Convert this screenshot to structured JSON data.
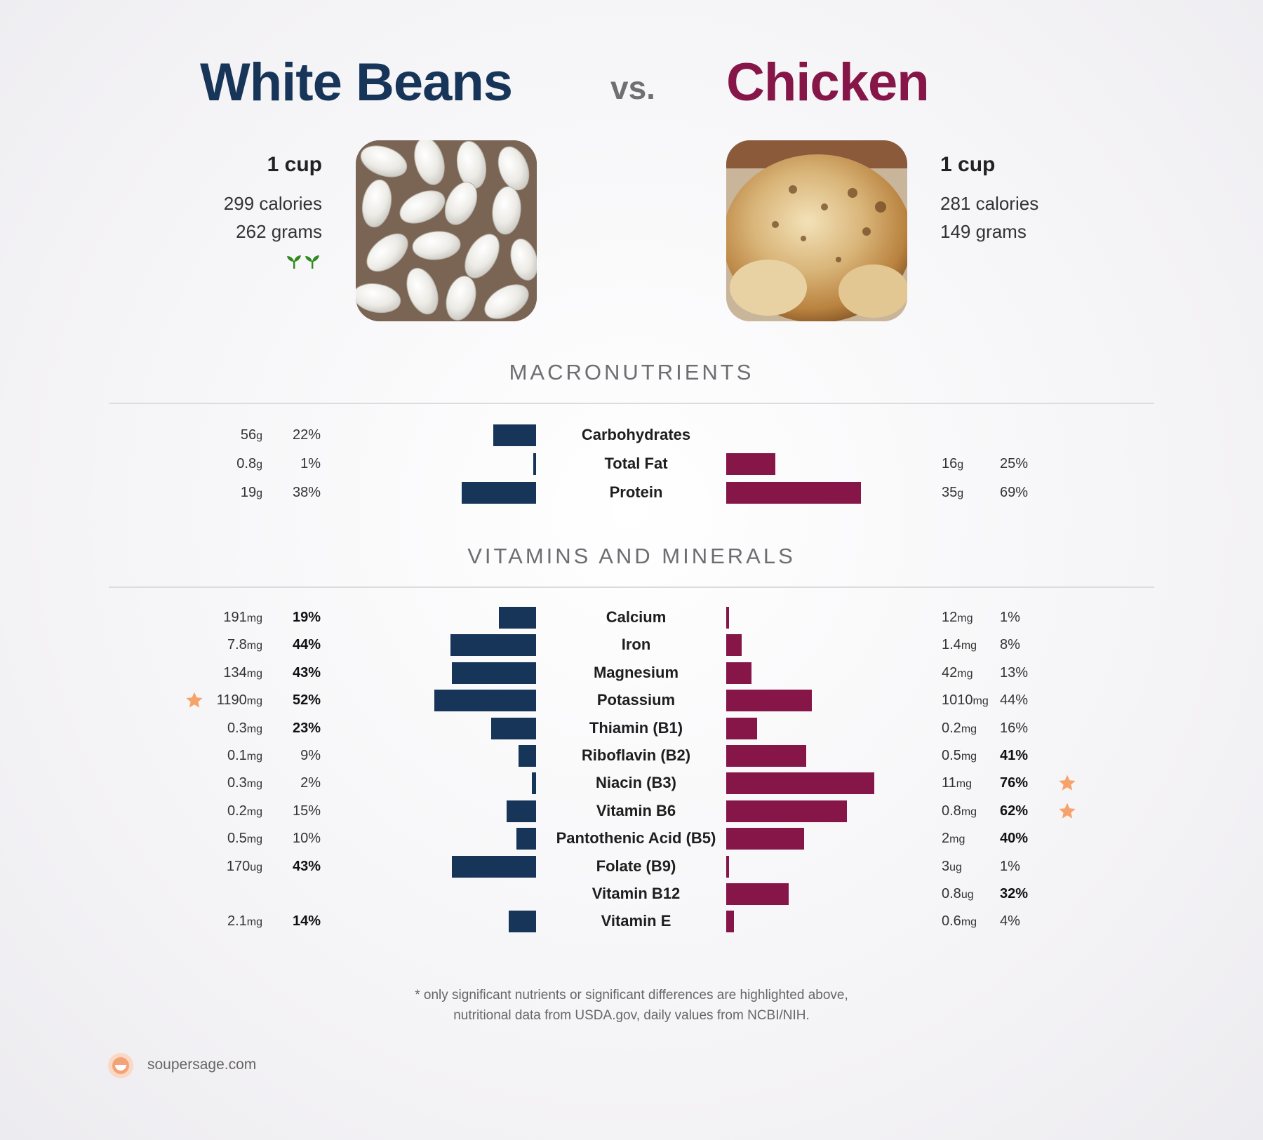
{
  "header": {
    "left_title": "White Beans",
    "vs": "vs.",
    "right_title": "Chicken",
    "left_color": "#163559",
    "right_color": "#861548"
  },
  "left_food": {
    "serving": "1 cup",
    "calories": "299 calories",
    "grams": "262 grams",
    "badge_icon": "sprout-icon"
  },
  "right_food": {
    "serving": "1 cup",
    "calories": "281 calories",
    "grams": "149 grams"
  },
  "sections": {
    "macros": "MACRONUTRIENTS",
    "vitamins": "VITAMINS AND MINERALS"
  },
  "footer": {
    "note_line1": "* only significant nutrients or significant differences are highlighted above,",
    "note_line2": "nutritional data from USDA.gov, daily values from NCBI/NIH.",
    "brand": "soupersage.com"
  },
  "chart_data": [
    {
      "type": "bar",
      "title": "MACRONUTRIENTS",
      "categories": [
        "Carbohydrates",
        "Total Fat",
        "Protein"
      ],
      "series": [
        {
          "name": "White Beans",
          "amounts": [
            "56",
            "0.8",
            "19"
          ],
          "units": [
            "g",
            "g",
            "g"
          ],
          "percent_labels": [
            "22%",
            "1%",
            "38%"
          ],
          "values": [
            22,
            1,
            38
          ],
          "bold": [
            false,
            false,
            false
          ],
          "star": [
            false,
            false,
            false
          ]
        },
        {
          "name": "Chicken",
          "amounts": [
            "",
            "16",
            "35"
          ],
          "units": [
            "",
            "g",
            "g"
          ],
          "percent_labels": [
            "",
            "25%",
            "69%"
          ],
          "values": [
            0,
            25,
            69
          ],
          "bold": [
            false,
            false,
            false
          ],
          "star": [
            false,
            false,
            false
          ]
        }
      ]
    },
    {
      "type": "bar",
      "title": "VITAMINS AND MINERALS",
      "categories": [
        "Calcium",
        "Iron",
        "Magnesium",
        "Potassium",
        "Thiamin (B1)",
        "Riboflavin (B2)",
        "Niacin (B3)",
        "Vitamin B6",
        "Pantothenic Acid (B5)",
        "Folate (B9)",
        "Vitamin B12",
        "Vitamin E"
      ],
      "series": [
        {
          "name": "White Beans",
          "amounts": [
            "191",
            "7.8",
            "134",
            "1190",
            "0.3",
            "0.1",
            "0.3",
            "0.2",
            "0.5",
            "170",
            "",
            "2.1"
          ],
          "units": [
            "mg",
            "mg",
            "mg",
            "mg",
            "mg",
            "mg",
            "mg",
            "mg",
            "mg",
            "ug",
            "",
            "mg"
          ],
          "percent_labels": [
            "19%",
            "44%",
            "43%",
            "52%",
            "23%",
            "9%",
            "2%",
            "15%",
            "10%",
            "43%",
            "",
            "14%"
          ],
          "values": [
            19,
            44,
            43,
            52,
            23,
            9,
            2,
            15,
            10,
            43,
            0,
            14
          ],
          "bold": [
            true,
            true,
            true,
            true,
            true,
            false,
            false,
            false,
            false,
            true,
            false,
            true
          ],
          "star": [
            false,
            false,
            false,
            true,
            false,
            false,
            false,
            false,
            false,
            false,
            false,
            false
          ]
        },
        {
          "name": "Chicken",
          "amounts": [
            "12",
            "1.4",
            "42",
            "1010",
            "0.2",
            "0.5",
            "11",
            "0.8",
            "2",
            "3",
            "0.8",
            "0.6"
          ],
          "units": [
            "mg",
            "mg",
            "mg",
            "mg",
            "mg",
            "mg",
            "mg",
            "mg",
            "mg",
            "ug",
            "ug",
            "mg"
          ],
          "percent_labels": [
            "1%",
            "8%",
            "13%",
            "44%",
            "16%",
            "41%",
            "76%",
            "62%",
            "40%",
            "1%",
            "32%",
            "4%"
          ],
          "values": [
            1,
            8,
            13,
            44,
            16,
            41,
            76,
            62,
            40,
            1,
            32,
            4
          ],
          "bold": [
            false,
            false,
            false,
            false,
            false,
            true,
            true,
            true,
            true,
            false,
            true,
            false
          ],
          "star": [
            false,
            false,
            false,
            false,
            false,
            false,
            true,
            true,
            false,
            false,
            false,
            false
          ]
        }
      ]
    }
  ]
}
